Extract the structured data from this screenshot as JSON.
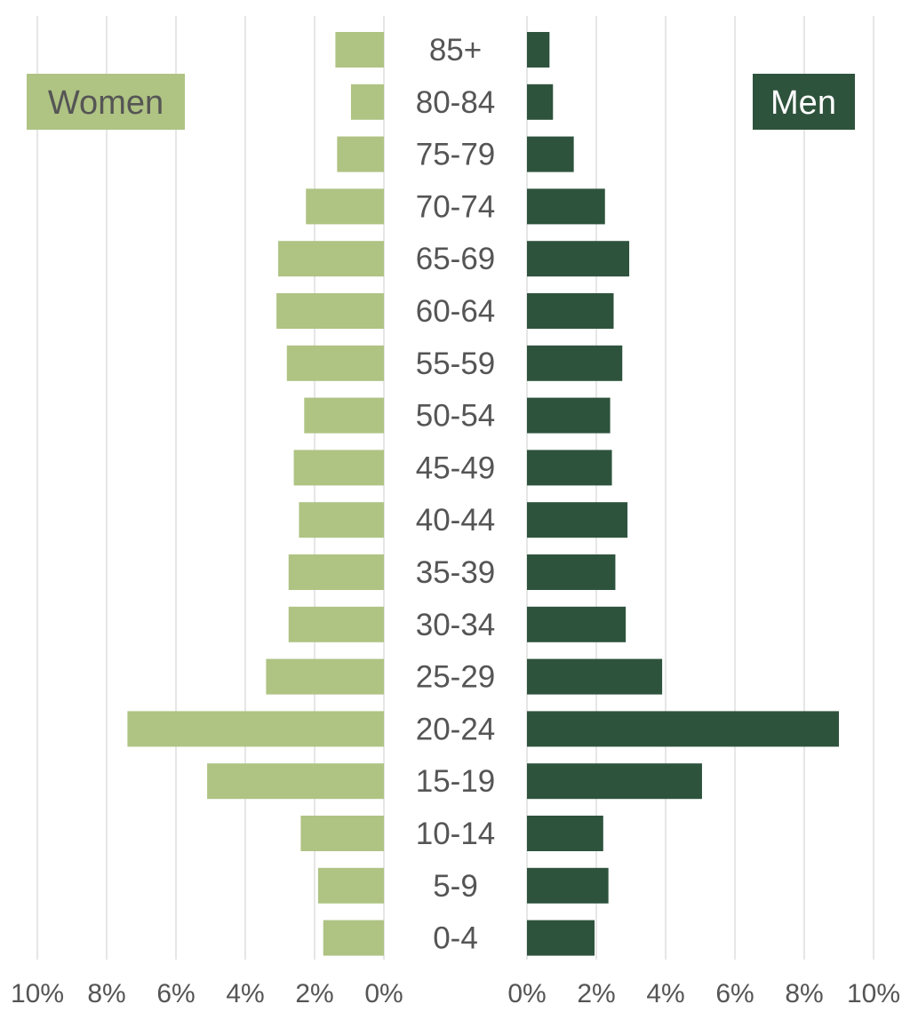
{
  "chart_data": {
    "type": "bar",
    "orientation": "horizontal",
    "layout": "population-pyramid",
    "categories": [
      "85+",
      "80-84",
      "75-79",
      "70-74",
      "65-69",
      "60-64",
      "55-59",
      "50-54",
      "45-49",
      "40-44",
      "35-39",
      "30-34",
      "25-29",
      "20-24",
      "15-19",
      "10-14",
      "5-9",
      "0-4"
    ],
    "series": [
      {
        "name": "Women",
        "color": "#afc383",
        "values": [
          1.4,
          0.95,
          1.35,
          2.25,
          3.05,
          3.1,
          2.8,
          2.3,
          2.6,
          2.45,
          2.75,
          2.75,
          3.4,
          7.4,
          5.1,
          2.4,
          1.9,
          1.75
        ]
      },
      {
        "name": "Men",
        "color": "#2e533d",
        "values": [
          0.65,
          0.75,
          1.35,
          2.25,
          2.95,
          2.5,
          2.75,
          2.4,
          2.45,
          2.9,
          2.55,
          2.85,
          3.9,
          9.0,
          5.05,
          2.2,
          2.35,
          1.95
        ]
      }
    ],
    "xlim": [
      0,
      10
    ],
    "x_ticks": [
      "10%",
      "8%",
      "6%",
      "4%",
      "2%",
      "0%"
    ],
    "x_ticks_right": [
      "0%",
      "2%",
      "4%",
      "6%",
      "8%",
      "10%"
    ],
    "grid": true,
    "title": "",
    "xlabel": "",
    "ylabel": "",
    "legend": [
      {
        "label": "Women",
        "position": "top-left"
      },
      {
        "label": "Men",
        "position": "top-right"
      }
    ]
  }
}
